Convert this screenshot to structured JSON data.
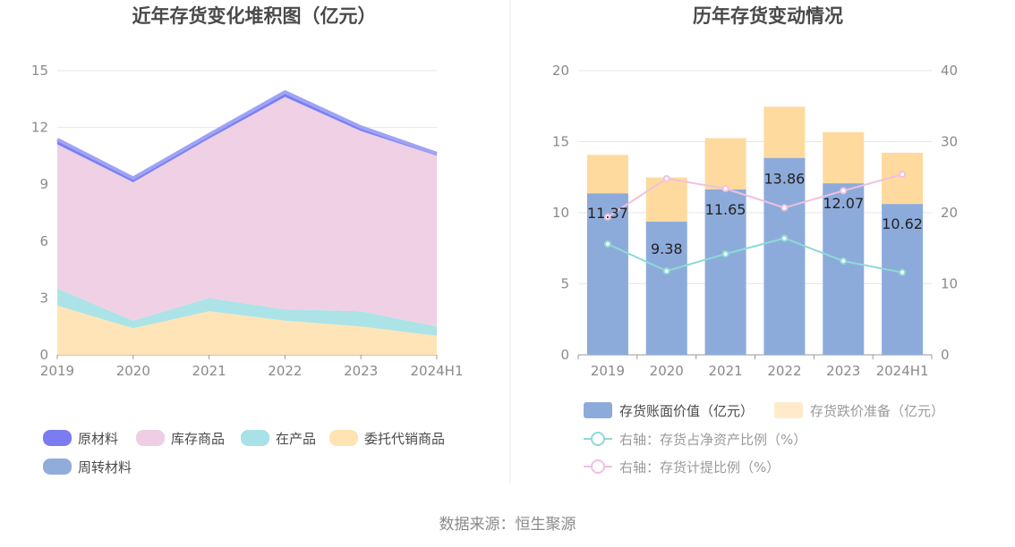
{
  "footer": "数据来源：恒生聚源",
  "chart_data": [
    {
      "type": "area",
      "stacked": true,
      "title": "近年存货变化堆积图（亿元）",
      "categories": [
        "2019",
        "2020",
        "2021",
        "2022",
        "2023",
        "2024H1"
      ],
      "ylim": [
        0,
        15
      ],
      "yticks": [
        0,
        3,
        6,
        9,
        12,
        15
      ],
      "grid": true,
      "legend_position": "bottom",
      "series": [
        {
          "name": "委托代销商品",
          "color": "#FFE3B3",
          "values": [
            2.6,
            1.4,
            2.3,
            1.8,
            1.5,
            1.0
          ]
        },
        {
          "name": "在产品",
          "color": "#A8E2E6",
          "values": [
            0.9,
            0.4,
            0.7,
            0.6,
            0.8,
            0.5
          ]
        },
        {
          "name": "库存商品",
          "color": "#EFCDE4",
          "values": [
            7.6,
            7.3,
            8.4,
            11.2,
            9.5,
            9.0
          ]
        },
        {
          "name": "周转材料",
          "color": "#8FACDB",
          "values": [
            0.02,
            0.02,
            0.02,
            0.02,
            0.02,
            0.02
          ]
        },
        {
          "name": "原材料",
          "color": "#7B7BF2",
          "values": [
            0.25,
            0.2,
            0.2,
            0.25,
            0.2,
            0.1
          ]
        }
      ],
      "legend_order": [
        "原材料",
        "库存商品",
        "在产品",
        "委托代销商品",
        "周转材料"
      ]
    },
    {
      "type": "bar",
      "stacked": true,
      "title": "历年存货变动情况",
      "categories": [
        "2019",
        "2020",
        "2021",
        "2022",
        "2023",
        "2024H1"
      ],
      "ylim": [
        0,
        20
      ],
      "yticks": [
        0,
        5,
        10,
        15,
        20
      ],
      "y2lim": [
        0,
        40
      ],
      "y2ticks": [
        0,
        10,
        20,
        30,
        40
      ],
      "grid": true,
      "legend_position": "bottom",
      "series": [
        {
          "name": "存货账面价值（亿元）",
          "kind": "bar",
          "color": "#8DABDA",
          "values": [
            11.37,
            9.38,
            11.65,
            13.86,
            12.07,
            10.62
          ],
          "labels": [
            "11.37",
            "9.38",
            "11.65",
            "13.86",
            "12.07",
            "10.62"
          ]
        },
        {
          "name": "存货跌价准备（亿元）",
          "kind": "bar",
          "color": "#FFDA9E",
          "values": [
            2.7,
            3.1,
            3.6,
            3.6,
            3.6,
            3.6
          ]
        },
        {
          "name": "右轴：存货占净资产比例（%）",
          "kind": "line",
          "axis": "right",
          "color": "#8ED9D6",
          "values": [
            15.6,
            11.8,
            14.2,
            16.4,
            13.2,
            11.6
          ]
        },
        {
          "name": "右轴：存货计提比例（%）",
          "kind": "line",
          "axis": "right",
          "color": "#EFC0E0",
          "values": [
            19.4,
            24.8,
            23.4,
            20.7,
            23.1,
            25.4
          ]
        }
      ]
    }
  ]
}
